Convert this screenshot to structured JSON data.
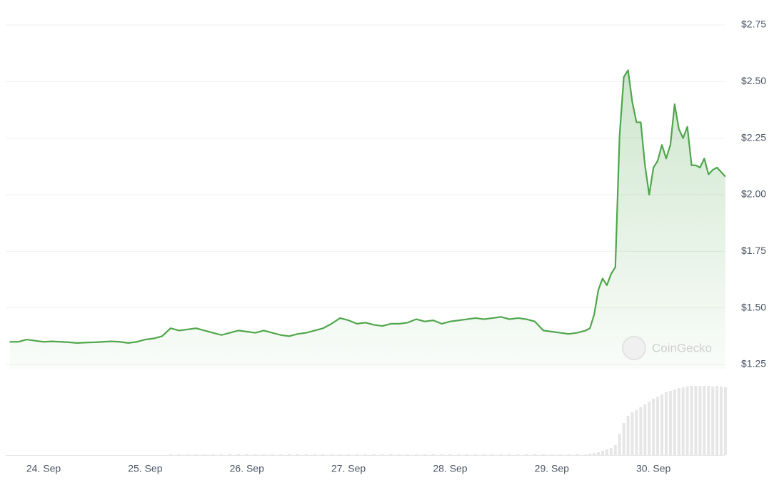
{
  "chart_data": {
    "type": "line",
    "x": [
      -8,
      -6,
      -4,
      -2,
      0,
      2,
      4,
      6,
      8,
      10,
      12,
      14,
      16,
      18,
      20,
      22,
      24,
      26,
      28,
      30,
      32,
      34,
      36,
      38,
      40,
      42,
      44,
      46,
      48,
      50,
      52,
      54,
      56,
      58,
      60,
      62,
      64,
      66,
      68,
      70,
      72,
      74,
      76,
      78,
      80,
      82,
      84,
      86,
      88,
      90,
      92,
      94,
      96,
      98,
      100,
      102,
      104,
      106,
      108,
      110,
      112,
      114,
      116,
      118,
      120,
      122,
      124,
      126,
      128,
      129,
      130,
      131,
      132,
      133,
      134,
      135,
      136,
      137,
      138,
      139,
      140,
      141,
      142,
      143,
      144,
      145,
      146,
      147,
      148,
      149,
      150,
      151,
      152,
      153,
      154,
      155,
      156,
      157,
      158,
      159,
      160,
      161
    ],
    "xlim": [
      -8.6,
      161
    ],
    "xticks": [
      {
        "value": 0,
        "label": "24. Sep"
      },
      {
        "value": 24,
        "label": "25. Sep"
      },
      {
        "value": 48,
        "label": "26. Sep"
      },
      {
        "value": 72,
        "label": "27. Sep"
      },
      {
        "value": 96,
        "label": "28. Sep"
      },
      {
        "value": 120,
        "label": "29. Sep"
      },
      {
        "value": 144,
        "label": "30. Sep"
      }
    ],
    "ylim": [
      1.25,
      2.75
    ],
    "yticks": [
      {
        "value": 2.75,
        "label": "$2.75"
      },
      {
        "value": 2.5,
        "label": "$2.50"
      },
      {
        "value": 2.25,
        "label": "$2.25"
      },
      {
        "value": 2,
        "label": "$2.00"
      },
      {
        "value": 1.75,
        "label": "$1.75"
      },
      {
        "value": 1.5,
        "label": "$1.50"
      },
      {
        "value": 1.25,
        "label": "$1.25"
      }
    ],
    "grid": true,
    "series": [
      {
        "color": "#4fa64b",
        "values": [
          1.35,
          1.35,
          1.36,
          1.355,
          1.35,
          1.352,
          1.35,
          1.348,
          1.345,
          1.347,
          1.348,
          1.35,
          1.352,
          1.35,
          1.345,
          1.35,
          1.36,
          1.365,
          1.375,
          1.41,
          1.4,
          1.405,
          1.41,
          1.4,
          1.39,
          1.38,
          1.39,
          1.4,
          1.395,
          1.39,
          1.4,
          1.39,
          1.38,
          1.375,
          1.385,
          1.39,
          1.4,
          1.41,
          1.43,
          1.455,
          1.445,
          1.43,
          1.435,
          1.425,
          1.42,
          1.43,
          1.43,
          1.435,
          1.45,
          1.44,
          1.445,
          1.43,
          1.44,
          1.445,
          1.45,
          1.455,
          1.45,
          1.455,
          1.46,
          1.45,
          1.455,
          1.45,
          1.44,
          1.4,
          1.395,
          1.39,
          1.385,
          1.39,
          1.4,
          1.41,
          1.47,
          1.58,
          1.63,
          1.6,
          1.65,
          1.68,
          2.26,
          2.52,
          2.55,
          2.41,
          2.32,
          2.32,
          2.13,
          2.0,
          2.12,
          2.15,
          2.22,
          2.16,
          2.22,
          2.4,
          2.29,
          2.25,
          2.3,
          2.13,
          2.13,
          2.12,
          2.16,
          2.09,
          2.11,
          2.12,
          2.1,
          2.08
        ]
      }
    ],
    "volume": {
      "color": "#e6e6e6",
      "values": [
        0,
        0,
        0,
        0,
        0,
        0,
        0,
        0,
        0,
        0,
        0,
        0,
        0,
        0,
        0,
        0,
        0,
        0,
        0,
        1,
        1,
        1,
        1,
        1,
        1,
        1,
        1,
        1,
        1,
        1,
        1,
        1,
        1,
        1,
        1,
        1,
        1,
        1,
        1,
        1,
        1,
        1,
        1,
        1,
        1,
        1,
        1,
        1,
        1,
        1,
        1,
        1,
        1,
        1,
        1,
        1,
        1,
        1,
        1,
        1,
        1,
        1,
        1,
        1,
        1,
        1,
        1,
        1,
        1,
        2,
        3,
        4,
        6,
        8,
        10,
        14,
        30,
        45,
        55,
        60,
        63,
        67,
        71,
        75,
        79,
        82,
        85,
        88,
        90,
        92,
        94,
        95,
        96,
        97,
        97,
        97,
        97,
        97,
        96,
        97,
        96,
        95
      ]
    },
    "y2lim": [
      0,
      100
    ],
    "watermark": "CoinGecko"
  }
}
